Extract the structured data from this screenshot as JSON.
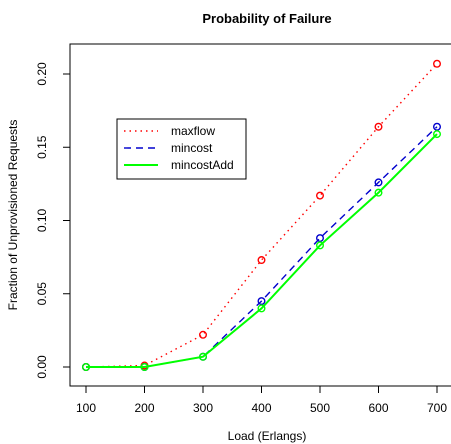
{
  "chart_data": {
    "type": "line",
    "title": "Probability of Failure",
    "xlabel": "Load (Erlangs)",
    "ylabel": "Fraction of Unprovisioned Requests",
    "x": [
      100,
      200,
      300,
      400,
      500,
      600,
      700
    ],
    "xticks": [
      "100",
      "200",
      "300",
      "400",
      "500",
      "600",
      "700"
    ],
    "yticks": [
      "0.00",
      "0.05",
      "0.10",
      "0.15",
      "0.20"
    ],
    "xlim": [
      100,
      700
    ],
    "ylim": [
      0,
      0.2
    ],
    "grid": false,
    "legend_position": "top-left",
    "series": [
      {
        "name": "maxflow",
        "color": "#ff0000",
        "line_style": "dotted",
        "values": [
          0.0,
          0.001,
          0.022,
          0.073,
          0.117,
          0.164,
          0.207
        ]
      },
      {
        "name": "mincost",
        "color": "#0000cd",
        "line_style": "dashed",
        "values": [
          0.0,
          0.0,
          0.007,
          0.045,
          0.088,
          0.126,
          0.164
        ]
      },
      {
        "name": "mincostAdd",
        "color": "#00ff00",
        "line_style": "solid",
        "values": [
          0.0,
          0.0,
          0.007,
          0.04,
          0.083,
          0.119,
          0.159
        ]
      }
    ]
  }
}
